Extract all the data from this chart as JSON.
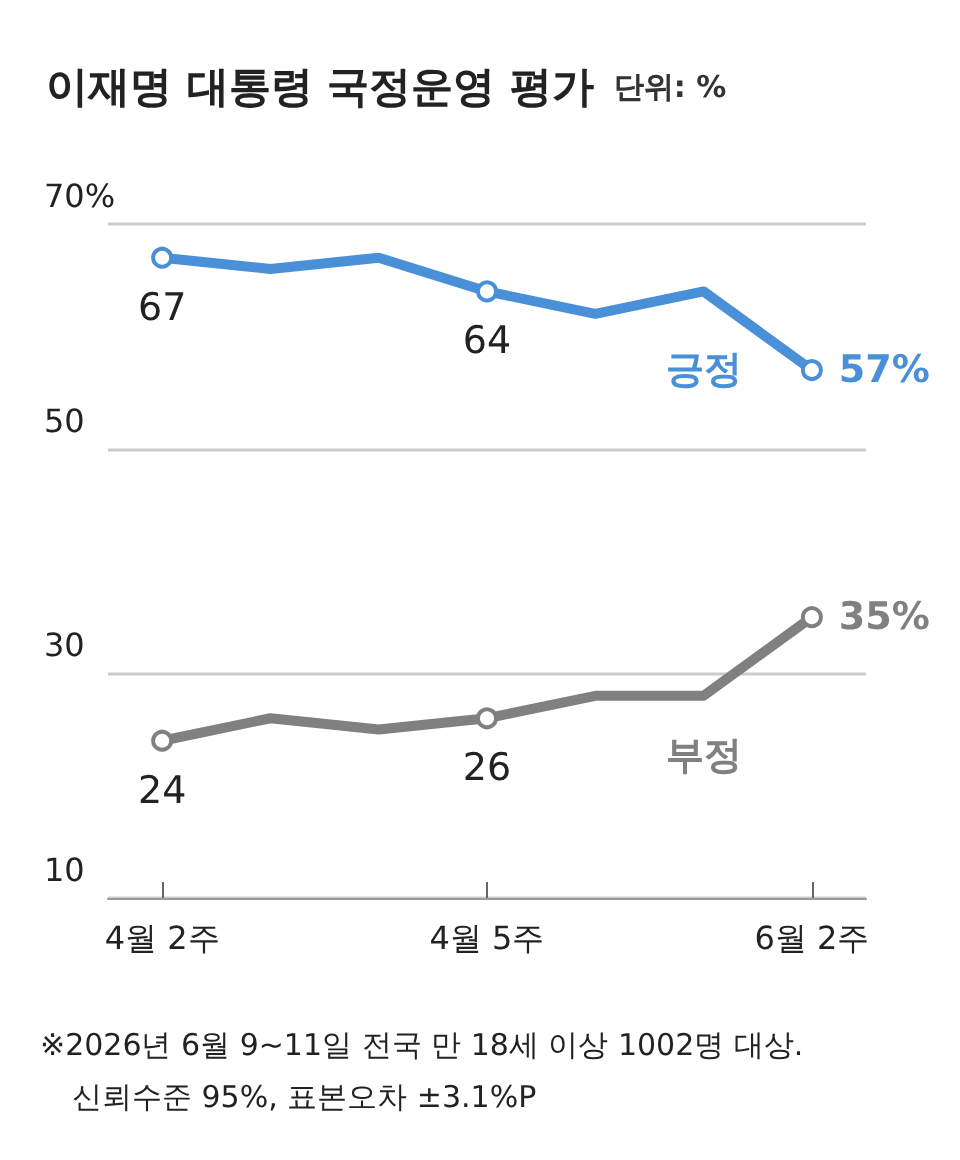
{
  "chart_data": {
    "type": "line",
    "title": "이재명 대통령 국정운영 평가",
    "subtitle": "단위: %",
    "categories": [
      "4월 2주",
      null,
      null,
      "4월 5주",
      null,
      null,
      "6월 2주"
    ],
    "series": [
      {
        "name": "긍정",
        "color": "#4a90d9",
        "values": [
          67,
          66,
          67,
          64,
          62,
          64,
          57
        ],
        "value_labels": [
          "67",
          null,
          null,
          "64",
          null,
          null,
          "57%"
        ]
      },
      {
        "name": "부정",
        "color": "#808080",
        "values": [
          24,
          26,
          25,
          26,
          28,
          28,
          35
        ],
        "value_labels": [
          "24",
          null,
          null,
          "26",
          null,
          null,
          "35%"
        ]
      }
    ],
    "ylim": [
      10,
      70
    ],
    "yticks": [
      {
        "value": 10,
        "label": "10"
      },
      {
        "value": 30,
        "label": "30"
      },
      {
        "value": 50,
        "label": "50"
      },
      {
        "value": 70,
        "label": "70%"
      }
    ],
    "grid": "y",
    "legend": false,
    "line_style": "solid",
    "annotations": [
      "※2026년 6월 9~11일 전국 만 18세 이상 1002명 대상.",
      "신뢰수준 95%, 표본오차 ±3.1%P"
    ]
  }
}
